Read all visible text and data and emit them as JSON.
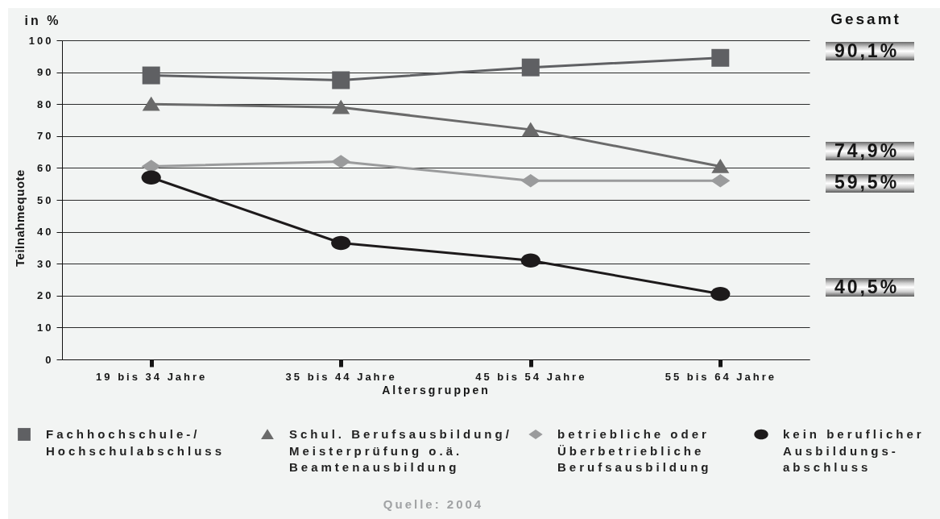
{
  "chart_data": {
    "type": "line",
    "xlabel": "Altersgruppen",
    "ylabel": "Teilnahmequote",
    "categories": [
      "19 bis 34 Jahre",
      "35 bis 44 Jahre",
      "45 bis 54 Jahre",
      "55 bis 64 Jahre"
    ],
    "series": [
      {
        "name": "Fachhochschule-/\nHochschulabschluss",
        "color": "#5f6063",
        "marker": "square",
        "values": [
          89,
          87.5,
          91.5,
          94.5
        ]
      },
      {
        "name": "Schul. Berufsausbildung/\nMeisterprüfung o.ä.\nBeamtenausbildung",
        "color": "#6a6a6a",
        "marker": "triangle",
        "values": [
          80,
          79,
          72,
          60.5
        ]
      },
      {
        "name": "betriebliche oder\nÜberbetriebliche\nBerufsausbildung",
        "color": "#9a9b9c",
        "marker": "diamond",
        "values": [
          60.5,
          62,
          56,
          56
        ]
      },
      {
        "name": "kein beruflicher\nAusbildungs-\nabschluss",
        "color": "#1d1a1b",
        "marker": "circle",
        "values": [
          57,
          36.5,
          31,
          20.5
        ]
      }
    ],
    "ylim": [
      0,
      100
    ],
    "yticks": [
      0,
      10,
      20,
      30,
      40,
      50,
      60,
      70,
      80,
      90,
      100
    ],
    "grid": "y",
    "legend": "bottom",
    "annotations": [
      "in %",
      "Gesamt",
      "90,1%",
      "74,9%",
      "59,5%",
      "40,5%",
      "Quelle: 2004"
    ]
  }
}
